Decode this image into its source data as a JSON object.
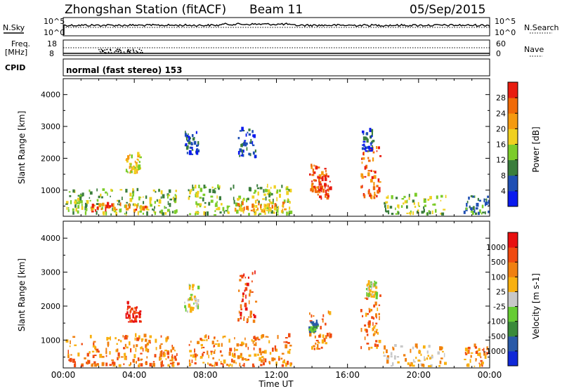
{
  "header": {
    "station": "Zhongshan Station (fitACF)",
    "beam": "Beam 11",
    "date": "05/Sep/2015"
  },
  "noise_panel": {
    "left_label": "N.Sky",
    "right_label": "N.Search",
    "ticks": [
      "10^5",
      "10^0"
    ]
  },
  "freq_panel": {
    "left_label_line1": "Freq.",
    "left_label_line2": "[MHz]",
    "left_ticks": [
      "18",
      "8"
    ],
    "right_label": "Nave",
    "right_ticks": [
      "60",
      "0"
    ]
  },
  "cpid": {
    "label": "CPID",
    "value": "normal (fast stereo) 153"
  },
  "chart_data": [
    {
      "type": "heatmap",
      "panel": "power",
      "ylabel": "Slant Range [km]",
      "xlabel": "Time UT",
      "y_ticks": [
        1000,
        2000,
        3000,
        4000
      ],
      "ylim": [
        180,
        4500
      ],
      "x_tick_labels": [
        "00:00",
        "04:00",
        "08:00",
        "12:00",
        "16:00",
        "20:00",
        "00:00"
      ],
      "xlim_hours": [
        0,
        24
      ],
      "colorbar": {
        "label": "Power [dB]",
        "tick_labels": [
          "4",
          "8",
          "12",
          "16",
          "20",
          "24",
          "28"
        ],
        "colors": [
          "#0a1aee",
          "#1f4fb4",
          "#3a7d3c",
          "#7ccc2a",
          "#f0d020",
          "#f59a10",
          "#f06a08",
          "#e81c10"
        ]
      },
      "echo_regions": [
        {
          "t0": 0.1,
          "t1": 6.5,
          "r0": 200,
          "r1": 1000,
          "level": 3
        },
        {
          "t0": 1.5,
          "t1": 5.0,
          "r0": 300,
          "r1": 500,
          "level": 6
        },
        {
          "t0": 3.5,
          "t1": 4.3,
          "r0": 1500,
          "r1": 2100,
          "level": 4
        },
        {
          "t0": 6.8,
          "t1": 7.6,
          "r0": 2100,
          "r1": 2800,
          "level": 1
        },
        {
          "t0": 9.8,
          "t1": 10.8,
          "r0": 2000,
          "r1": 3000,
          "level": 1
        },
        {
          "t0": 7.0,
          "t1": 12.8,
          "r0": 200,
          "r1": 1100,
          "level": 3
        },
        {
          "t0": 9.5,
          "t1": 12.5,
          "r0": 300,
          "r1": 700,
          "level": 5
        },
        {
          "t0": 13.8,
          "t1": 14.8,
          "r0": 900,
          "r1": 1800,
          "level": 6
        },
        {
          "t0": 14.3,
          "t1": 15.0,
          "r0": 700,
          "r1": 1400,
          "level": 7
        },
        {
          "t0": 16.7,
          "t1": 17.8,
          "r0": 700,
          "r1": 2300,
          "level": 6
        },
        {
          "t0": 16.8,
          "t1": 17.4,
          "r0": 2200,
          "r1": 2900,
          "level": 1
        },
        {
          "t0": 18.0,
          "t1": 21.5,
          "r0": 200,
          "r1": 800,
          "level": 3
        },
        {
          "t0": 22.5,
          "t1": 24.0,
          "r0": 200,
          "r1": 800,
          "level": 2
        }
      ]
    },
    {
      "type": "heatmap",
      "panel": "velocity",
      "ylabel": "Slant Range [km]",
      "xlabel": "Time UT",
      "y_ticks": [
        1000,
        2000,
        3000,
        4000
      ],
      "ylim": [
        180,
        4500
      ],
      "x_tick_labels": [
        "00:00",
        "04:00",
        "08:00",
        "12:00",
        "16:00",
        "20:00",
        "00:00"
      ],
      "xlim_hours": [
        0,
        24
      ],
      "colorbar": {
        "label": "Velocity [m s-1]",
        "tick_labels": [
          "1000",
          "500",
          "100",
          "25",
          "-25",
          "-100",
          "-500",
          "-1000"
        ],
        "colors": [
          "#1028d8",
          "#2a5aa8",
          "#3a8a3a",
          "#66cc33",
          "#c8c8c8",
          "#f8b010",
          "#f08010",
          "#f04a10",
          "#e81010"
        ]
      },
      "echo_regions": [
        {
          "t0": 0.1,
          "t1": 6.5,
          "r0": 200,
          "r1": 1100,
          "level": 6
        },
        {
          "t0": 3.5,
          "t1": 4.3,
          "r0": 1500,
          "r1": 2100,
          "level": 8
        },
        {
          "t0": 6.8,
          "t1": 7.6,
          "r0": 1800,
          "r1": 2600,
          "level": 4
        },
        {
          "t0": 7.0,
          "t1": 12.8,
          "r0": 200,
          "r1": 1100,
          "level": 6
        },
        {
          "t0": 9.8,
          "t1": 10.8,
          "r0": 1500,
          "r1": 3000,
          "level": 7
        },
        {
          "t0": 13.8,
          "t1": 15.0,
          "r0": 700,
          "r1": 1800,
          "level": 6
        },
        {
          "t0": 13.8,
          "t1": 14.3,
          "r0": 1200,
          "r1": 1500,
          "level": 2
        },
        {
          "t0": 16.7,
          "t1": 17.8,
          "r0": 700,
          "r1": 2300,
          "level": 6
        },
        {
          "t0": 17.0,
          "t1": 17.6,
          "r0": 2200,
          "r1": 2700,
          "level": 4
        },
        {
          "t0": 18.0,
          "t1": 21.5,
          "r0": 200,
          "r1": 800,
          "level": 5
        },
        {
          "t0": 22.5,
          "t1": 24.0,
          "r0": 200,
          "r1": 800,
          "level": 6
        }
      ]
    }
  ]
}
